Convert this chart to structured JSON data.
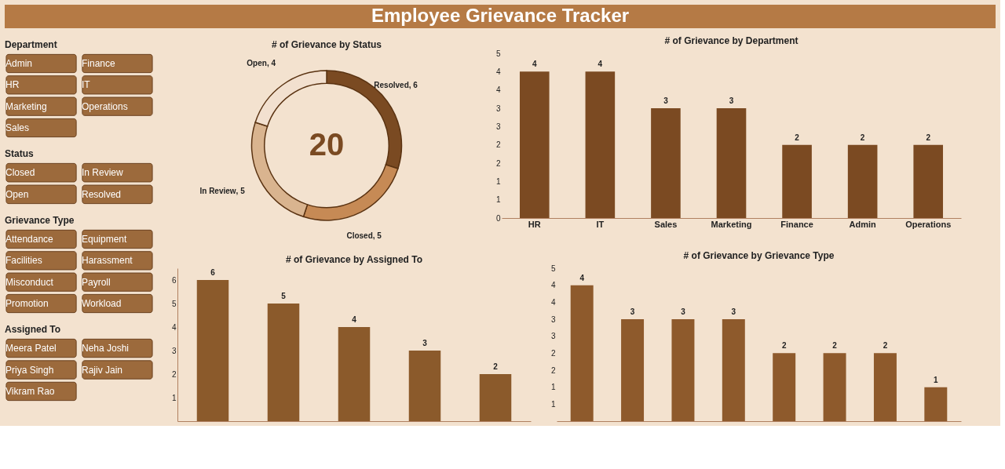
{
  "chart_data": [
    {
      "type": "other",
      "title": "Employee Grievance Tracker"
    },
    {
      "type": "other",
      "title": "Department",
      "annotations": [
        "Admin",
        "Finance",
        "HR",
        "IT",
        "Marketing",
        "Operations",
        "Sales"
      ]
    },
    {
      "type": "other",
      "title": "Status",
      "annotations": [
        "Closed",
        "In Review",
        "Open",
        "Resolved"
      ]
    },
    {
      "type": "other",
      "title": "Grievance Type",
      "annotations": [
        "Attendance",
        "Equipment",
        "Facilities",
        "Harassment",
        "Misconduct",
        "Payroll",
        "Promotion",
        "Workload"
      ]
    },
    {
      "type": "other",
      "title": "Assigned To",
      "annotations": [
        "Meera Patel",
        "Neha Joshi",
        "Priya Singh",
        "Rajiv Jain",
        "Vikram Rao"
      ]
    },
    {
      "type": "donut",
      "title": "# of Grievance  by Status",
      "categories": [
        "Resolved",
        "Closed",
        "In Review",
        "Open"
      ],
      "values": [
        6,
        5,
        5,
        4
      ],
      "colors": [
        "#7a4a22",
        "#c68a55",
        "#d9b48f",
        "#f2e0cf"
      ],
      "value_labels": [
        ", 6",
        ", 5",
        ", 5",
        ", 4"
      ],
      "annotations": [
        "20"
      ]
    },
    {
      "type": "bar",
      "title": "# of Grievance  by Department",
      "categories": [
        "HR",
        "IT",
        "Sales",
        "Marketing",
        "Finance",
        "Admin",
        "Operations"
      ],
      "series": [
        {
          "color": "#7b4a22",
          "values": [
            4,
            4,
            3,
            3,
            2,
            2,
            2
          ]
        }
      ],
      "data_labels": true,
      "ylim": [
        0,
        4.5
      ],
      "yticks": [
        0,
        {
          "value": 0.5,
          "label": "1"
        },
        {
          "value": 1,
          "label": "1"
        },
        {
          "value": 1.5,
          "label": "2"
        },
        {
          "value": 2,
          "label": "2"
        },
        {
          "value": 2.5,
          "label": "3"
        },
        {
          "value": 3,
          "label": "3"
        },
        {
          "value": 3.5,
          "label": "4"
        },
        {
          "value": 4,
          "label": "4"
        },
        {
          "value": 4.5,
          "label": "5"
        }
      ]
    },
    {
      "type": "bar",
      "title": "# of Grievance  by Assigned To",
      "categories": [
        null,
        null,
        null,
        null,
        null
      ],
      "series": [
        {
          "color": "#8b5a2b",
          "values": [
            6,
            5,
            4,
            3,
            2
          ]
        }
      ],
      "data_labels": true,
      "ylim": [
        0,
        6.5
      ],
      "yticks": [
        1,
        2,
        3,
        4,
        5,
        6
      ],
      "tick_labels": "y"
    },
    {
      "type": "bar",
      "title": "# of Grievance  by Grievance Type",
      "categories": [
        null,
        null,
        null,
        null,
        null,
        null,
        null,
        null
      ],
      "series": [
        {
          "color": "#8e5a2c",
          "values": [
            4,
            3,
            3,
            3,
            2,
            2,
            2,
            1
          ]
        }
      ],
      "data_labels": true,
      "ylim": [
        0,
        4.5
      ],
      "tick_labels": "y",
      "yticks": [
        {
          "value": 0.5,
          "label": "1"
        },
        {
          "value": 1,
          "label": "1"
        },
        {
          "value": 1.5,
          "label": "2"
        },
        {
          "value": 2,
          "label": "2"
        },
        {
          "value": 2.5,
          "label": "3"
        },
        {
          "value": 3,
          "label": "3"
        },
        {
          "value": 3.5,
          "label": "4"
        },
        {
          "value": 4,
          "label": "4"
        },
        {
          "value": 4.5,
          "label": "5"
        }
      ]
    }
  ]
}
